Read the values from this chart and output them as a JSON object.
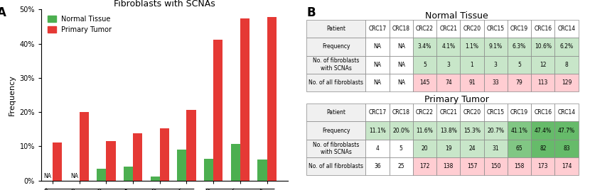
{
  "patients": [
    "CRC17",
    "CRC18",
    "CRC22",
    "CRC21",
    "CRC20",
    "CRC15",
    "CRC19",
    "CRC16",
    "CRC14"
  ],
  "normal_freq": [
    null,
    null,
    3.4,
    4.1,
    1.1,
    9.1,
    6.3,
    10.6,
    6.2
  ],
  "tumor_freq": [
    11.1,
    20.0,
    11.6,
    13.8,
    15.3,
    20.7,
    41.1,
    47.4,
    47.7
  ],
  "female_patients": [
    "CRC17",
    "CRC18",
    "CRC22",
    "CRC21",
    "CRC20",
    "CRC15"
  ],
  "male_patients": [
    "CRC19",
    "CRC16",
    "CRC14"
  ],
  "bar_width": 0.35,
  "green_color": "#4CAF50",
  "red_color": "#E53935",
  "title": "Fibroblasts with SCNAs",
  "ylabel": "Frequency",
  "ylim": [
    0,
    0.5
  ],
  "yticks": [
    0.0,
    0.1,
    0.2,
    0.3,
    0.4,
    0.5
  ],
  "ytick_labels": [
    "0%",
    "10%",
    "20%",
    "30%",
    "40%",
    "50%"
  ],
  "normal_table_title": "Normal Tissue",
  "tumor_table_title": "Primary Tumor",
  "table_rows": [
    "Patient",
    "Frequency",
    "No. of fibroblasts\nwith SCNAs",
    "No. of all fibroblasts"
  ],
  "normal_freq_str": [
    "NA",
    "NA",
    "3.4%",
    "4.1%",
    "1.1%",
    "9.1%",
    "6.3%",
    "10.6%",
    "6.2%"
  ],
  "normal_scna_count": [
    "NA",
    "NA",
    "5",
    "3",
    "1",
    "3",
    "5",
    "12",
    "8"
  ],
  "normal_total": [
    "NA",
    "NA",
    "145",
    "74",
    "91",
    "33",
    "79",
    "113",
    "129"
  ],
  "tumor_freq_str": [
    "11.1%",
    "20.0%",
    "11.6%",
    "13.8%",
    "15.3%",
    "20.7%",
    "41.1%",
    "47.4%",
    "47.7%"
  ],
  "tumor_scna_count": [
    "4",
    "5",
    "20",
    "19",
    "24",
    "31",
    "65",
    "82",
    "83"
  ],
  "tumor_total": [
    "36",
    "25",
    "172",
    "138",
    "157",
    "150",
    "158",
    "173",
    "174"
  ],
  "cell_colors_normal_freq": [
    "#ffffff",
    "#ffffff",
    "#c8e6c9",
    "#c8e6c9",
    "#c8e6c9",
    "#c8e6c9",
    "#c8e6c9",
    "#c8e6c9",
    "#c8e6c9"
  ],
  "cell_colors_normal_scna": [
    "#ffffff",
    "#ffffff",
    "#c8e6c9",
    "#c8e6c9",
    "#c8e6c9",
    "#c8e6c9",
    "#c8e6c9",
    "#c8e6c9",
    "#c8e6c9"
  ],
  "cell_colors_normal_total": [
    "#ffffff",
    "#ffffff",
    "#ffcdd2",
    "#ffcdd2",
    "#ffcdd2",
    "#ffcdd2",
    "#ffcdd2",
    "#ffcdd2",
    "#ffcdd2"
  ],
  "cell_colors_tumor_freq": [
    "#c8e6c9",
    "#c8e6c9",
    "#c8e6c9",
    "#c8e6c9",
    "#c8e6c9",
    "#c8e6c9",
    "#81c784",
    "#66bb6a",
    "#66bb6a"
  ],
  "cell_colors_tumor_scna": [
    "#ffffff",
    "#ffffff",
    "#c8e6c9",
    "#c8e6c9",
    "#c8e6c9",
    "#c8e6c9",
    "#81c784",
    "#66bb6a",
    "#66bb6a"
  ],
  "cell_colors_tumor_total": [
    "#ffffff",
    "#ffffff",
    "#ffcdd2",
    "#ffcdd2",
    "#ffcdd2",
    "#ffcdd2",
    "#ffcdd2",
    "#ffcdd2",
    "#ffcdd2"
  ]
}
